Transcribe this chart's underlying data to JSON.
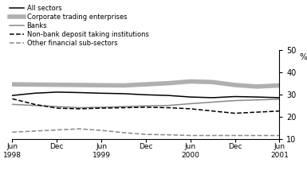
{
  "ylabel": "%",
  "ylim": [
    10,
    50
  ],
  "yticks": [
    10,
    20,
    30,
    40,
    50
  ],
  "x_labels": [
    "Jun\n1998",
    "Dec",
    "Jun\n1999",
    "Dec",
    "Jun\n2000",
    "Dec",
    "Jun\n2001"
  ],
  "x_positions": [
    0,
    1,
    2,
    3,
    4,
    5,
    6
  ],
  "series": {
    "All sectors": {
      "color": "#000000",
      "linestyle": "solid",
      "linewidth": 1.1,
      "values": [
        29.5,
        30.5,
        31.0,
        30.8,
        30.5,
        30.3,
        29.8,
        29.5,
        28.8,
        28.5,
        29.0,
        28.8,
        28.5
      ]
    },
    "Corporate trading enterprises": {
      "color": "#b0b0b0",
      "linestyle": "solid",
      "linewidth": 4.0,
      "values": [
        34.5,
        34.4,
        34.3,
        34.2,
        34.1,
        34.0,
        34.5,
        35.0,
        35.8,
        35.5,
        34.2,
        33.5,
        34.0
      ]
    },
    "Banks": {
      "color": "#888888",
      "linestyle": "solid",
      "linewidth": 1.1,
      "values": [
        25.5,
        25.0,
        24.5,
        24.0,
        24.2,
        24.5,
        24.8,
        25.0,
        25.8,
        26.5,
        27.2,
        27.5,
        27.8
      ]
    },
    "Non-bank deposit taking institutions": {
      "color": "#000000",
      "linestyle": "dashed",
      "linewidth": 1.1,
      "values": [
        28.0,
        25.5,
        23.8,
        23.5,
        23.8,
        24.0,
        24.2,
        24.0,
        23.5,
        22.5,
        21.5,
        22.0,
        22.5
      ]
    },
    "Other financial sub-sectors": {
      "color": "#888888",
      "linestyle": "dashed",
      "linewidth": 1.1,
      "values": [
        13.0,
        13.5,
        14.0,
        14.5,
        13.8,
        12.8,
        12.0,
        11.8,
        11.5,
        11.5,
        11.5,
        11.5,
        11.5
      ]
    }
  },
  "legend_order": [
    "All sectors",
    "Corporate trading enterprises",
    "Banks",
    "Non-bank deposit taking institutions",
    "Other financial sub-sectors"
  ],
  "background_color": "#ffffff"
}
